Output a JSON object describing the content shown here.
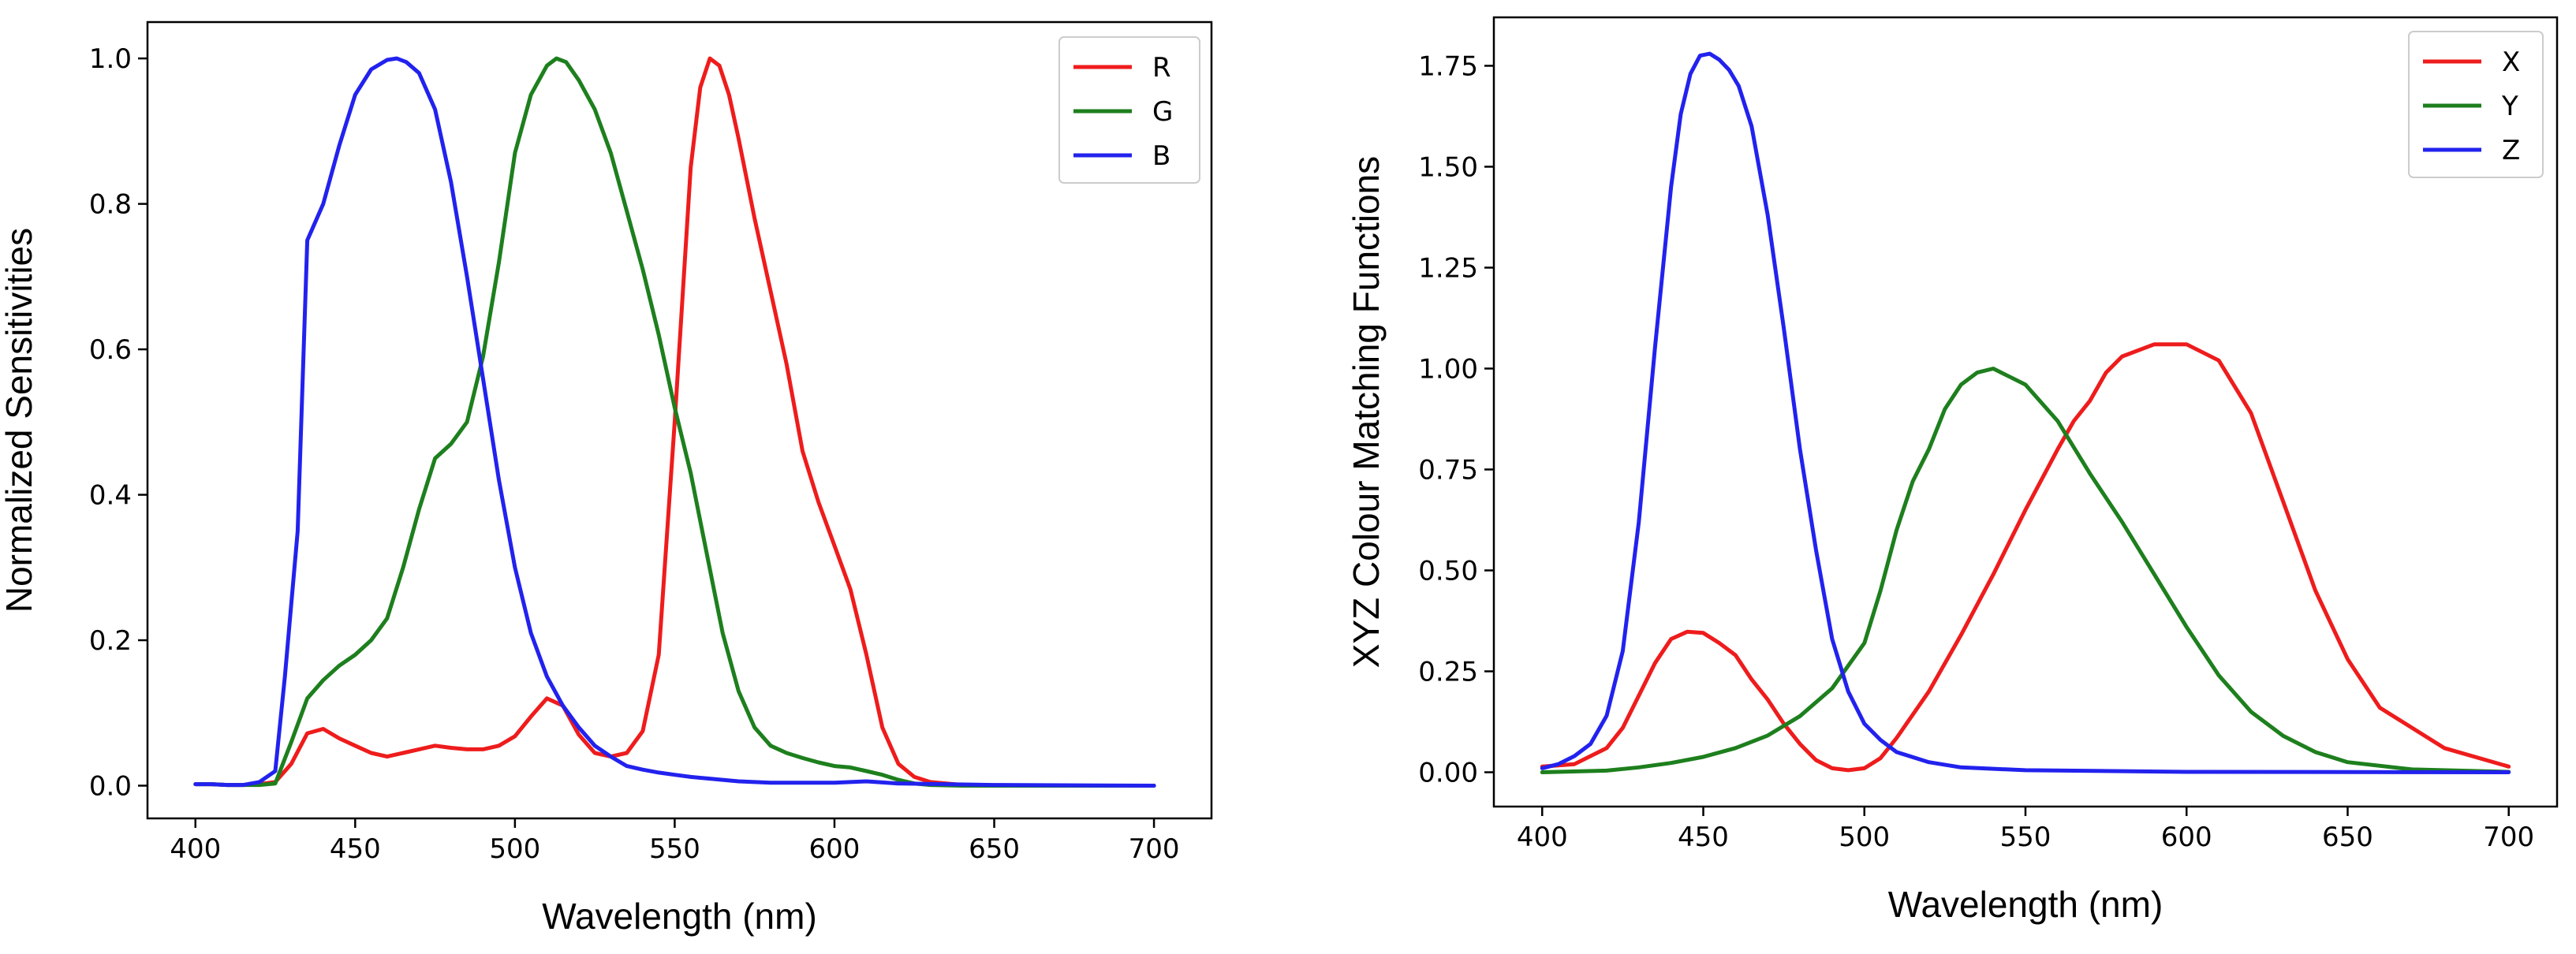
{
  "chart_data": [
    {
      "type": "line",
      "xlabel": "Wavelength (nm)",
      "ylabel": "Normalized Sensitivities",
      "xlim": [
        385,
        718
      ],
      "ylim": [
        -0.045,
        1.05
      ],
      "xticks": [
        400,
        450,
        500,
        550,
        600,
        650,
        700
      ],
      "xtick_labels": [
        "400",
        "450",
        "500",
        "550",
        "600",
        "650",
        "700"
      ],
      "yticks": [
        0.0,
        0.2,
        0.4,
        0.6,
        0.8,
        1.0
      ],
      "ytick_labels": [
        "0.0",
        "0.2",
        "0.4",
        "0.6",
        "0.8",
        "1.0"
      ],
      "legend_position": "top-right",
      "series": [
        {
          "name": "R",
          "color": "#ee1c1c",
          "x": [
            400,
            405,
            410,
            415,
            420,
            425,
            430,
            435,
            440,
            445,
            450,
            455,
            460,
            465,
            470,
            475,
            480,
            485,
            490,
            495,
            500,
            505,
            510,
            515,
            520,
            525,
            530,
            535,
            540,
            545,
            550,
            555,
            558,
            561,
            564,
            567,
            570,
            575,
            580,
            585,
            590,
            595,
            600,
            605,
            610,
            615,
            620,
            625,
            630,
            640,
            650,
            700
          ],
          "y": [
            0.002,
            0.002,
            0.001,
            0.001,
            0.002,
            0.005,
            0.03,
            0.072,
            0.078,
            0.065,
            0.055,
            0.045,
            0.04,
            0.045,
            0.05,
            0.055,
            0.052,
            0.05,
            0.05,
            0.055,
            0.068,
            0.095,
            0.12,
            0.11,
            0.07,
            0.045,
            0.04,
            0.045,
            0.075,
            0.18,
            0.5,
            0.85,
            0.96,
            1.0,
            0.99,
            0.95,
            0.89,
            0.78,
            0.68,
            0.58,
            0.46,
            0.39,
            0.33,
            0.27,
            0.18,
            0.08,
            0.03,
            0.012,
            0.005,
            0.001,
            0.0,
            0.0
          ]
        },
        {
          "name": "G",
          "color": "#1d7f1d",
          "x": [
            400,
            405,
            410,
            415,
            420,
            425,
            430,
            435,
            440,
            445,
            450,
            455,
            460,
            465,
            470,
            475,
            480,
            485,
            490,
            495,
            500,
            505,
            510,
            513,
            516,
            520,
            525,
            530,
            535,
            540,
            545,
            550,
            555,
            560,
            565,
            570,
            575,
            580,
            585,
            590,
            595,
            600,
            605,
            610,
            615,
            620,
            625,
            630,
            640,
            650,
            700
          ],
          "y": [
            0.002,
            0.002,
            0.001,
            0.001,
            0.001,
            0.003,
            0.06,
            0.12,
            0.145,
            0.165,
            0.18,
            0.2,
            0.23,
            0.3,
            0.38,
            0.45,
            0.47,
            0.5,
            0.59,
            0.72,
            0.87,
            0.95,
            0.99,
            1.0,
            0.995,
            0.97,
            0.93,
            0.87,
            0.79,
            0.71,
            0.62,
            0.52,
            0.43,
            0.32,
            0.21,
            0.13,
            0.08,
            0.055,
            0.045,
            0.038,
            0.032,
            0.027,
            0.025,
            0.02,
            0.015,
            0.008,
            0.003,
            0.001,
            0.0,
            0.0,
            0.0
          ]
        },
        {
          "name": "B",
          "color": "#2222ee",
          "x": [
            400,
            405,
            410,
            415,
            420,
            425,
            428,
            432,
            435,
            440,
            445,
            450,
            455,
            460,
            463,
            466,
            470,
            475,
            480,
            485,
            490,
            495,
            500,
            505,
            510,
            515,
            520,
            525,
            530,
            535,
            540,
            545,
            550,
            555,
            560,
            570,
            580,
            600,
            610,
            620,
            650,
            700
          ],
          "y": [
            0.002,
            0.002,
            0.001,
            0.001,
            0.005,
            0.02,
            0.15,
            0.35,
            0.75,
            0.8,
            0.88,
            0.95,
            0.985,
            0.998,
            1.0,
            0.995,
            0.98,
            0.93,
            0.83,
            0.7,
            0.56,
            0.42,
            0.3,
            0.21,
            0.15,
            0.11,
            0.08,
            0.055,
            0.04,
            0.027,
            0.022,
            0.018,
            0.015,
            0.012,
            0.01,
            0.006,
            0.004,
            0.004,
            0.006,
            0.003,
            0.001,
            0.0
          ]
        }
      ]
    },
    {
      "type": "line",
      "xlabel": "Wavelength (nm)",
      "ylabel": "XYZ Colour Matching Functions",
      "xlim": [
        385,
        715
      ],
      "ylim": [
        -0.085,
        1.87
      ],
      "xticks": [
        400,
        450,
        500,
        550,
        600,
        650,
        700
      ],
      "xtick_labels": [
        "400",
        "450",
        "500",
        "550",
        "600",
        "650",
        "700"
      ],
      "yticks": [
        0.0,
        0.25,
        0.5,
        0.75,
        1.0,
        1.25,
        1.5,
        1.75
      ],
      "ytick_labels": [
        "0.00",
        "0.25",
        "0.50",
        "0.75",
        "1.00",
        "1.25",
        "1.50",
        "1.75"
      ],
      "legend_position": "top-right",
      "series": [
        {
          "name": "X",
          "color": "#ee1c1c",
          "x": [
            400,
            410,
            420,
            425,
            430,
            435,
            440,
            445,
            450,
            455,
            460,
            465,
            470,
            475,
            480,
            485,
            490,
            495,
            500,
            505,
            510,
            520,
            530,
            540,
            550,
            560,
            565,
            570,
            575,
            580,
            590,
            600,
            610,
            620,
            630,
            640,
            650,
            660,
            680,
            700
          ],
          "y": [
            0.014,
            0.02,
            0.06,
            0.11,
            0.19,
            0.27,
            0.33,
            0.348,
            0.345,
            0.32,
            0.29,
            0.23,
            0.18,
            0.12,
            0.07,
            0.03,
            0.01,
            0.005,
            0.01,
            0.035,
            0.085,
            0.2,
            0.34,
            0.49,
            0.65,
            0.8,
            0.87,
            0.92,
            0.99,
            1.03,
            1.06,
            1.06,
            1.02,
            0.89,
            0.67,
            0.45,
            0.28,
            0.16,
            0.06,
            0.014
          ]
        },
        {
          "name": "Y",
          "color": "#1d7f1d",
          "x": [
            400,
            420,
            430,
            440,
            450,
            460,
            470,
            480,
            490,
            500,
            505,
            510,
            515,
            520,
            525,
            530,
            535,
            540,
            545,
            550,
            560,
            570,
            580,
            590,
            600,
            610,
            620,
            630,
            640,
            650,
            670,
            700
          ],
          "y": [
            0.0,
            0.004,
            0.012,
            0.023,
            0.038,
            0.06,
            0.091,
            0.139,
            0.208,
            0.32,
            0.45,
            0.6,
            0.72,
            0.8,
            0.9,
            0.96,
            0.99,
            1.0,
            0.98,
            0.96,
            0.87,
            0.74,
            0.62,
            0.49,
            0.36,
            0.24,
            0.15,
            0.09,
            0.05,
            0.025,
            0.007,
            0.001
          ]
        },
        {
          "name": "Z",
          "color": "#2222ee",
          "x": [
            400,
            405,
            410,
            415,
            420,
            425,
            430,
            435,
            440,
            443,
            446,
            449,
            452,
            455,
            458,
            461,
            465,
            470,
            475,
            480,
            485,
            490,
            495,
            500,
            505,
            510,
            520,
            530,
            550,
            600,
            700
          ],
          "y": [
            0.01,
            0.02,
            0.04,
            0.07,
            0.14,
            0.3,
            0.62,
            1.05,
            1.45,
            1.63,
            1.73,
            1.775,
            1.78,
            1.765,
            1.74,
            1.7,
            1.6,
            1.38,
            1.1,
            0.8,
            0.55,
            0.33,
            0.2,
            0.12,
            0.08,
            0.05,
            0.025,
            0.012,
            0.005,
            0.001,
            0.0
          ]
        }
      ]
    }
  ]
}
